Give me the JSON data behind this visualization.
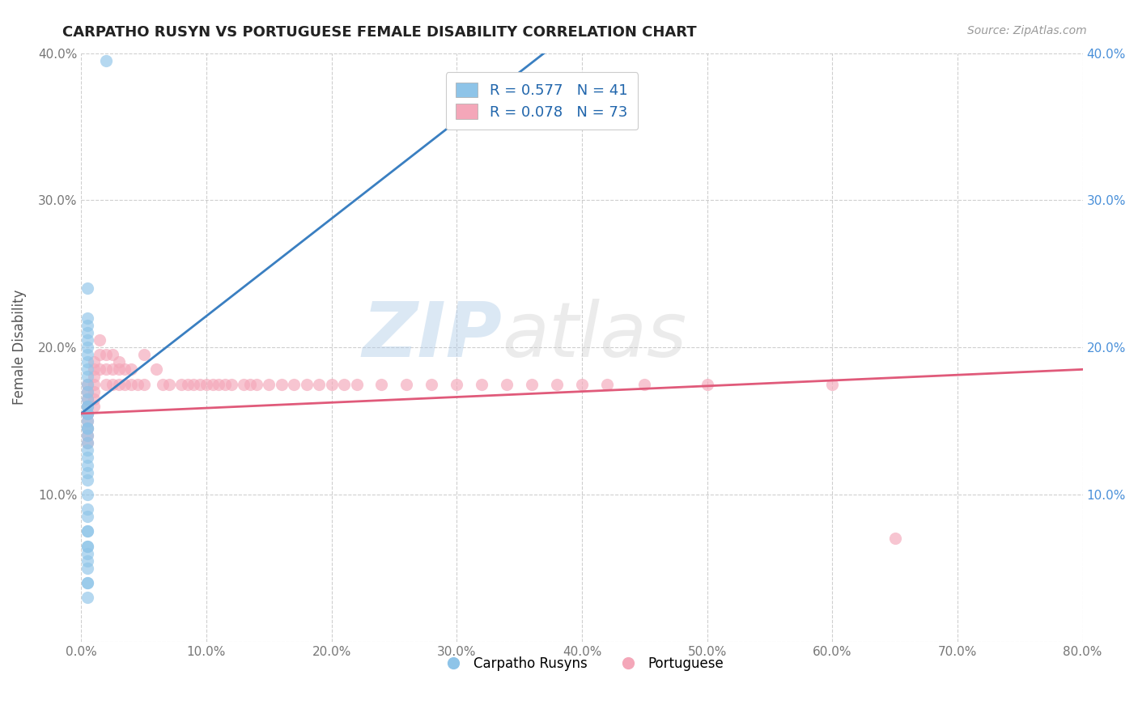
{
  "title": "CARPATHO RUSYN VS PORTUGUESE FEMALE DISABILITY CORRELATION CHART",
  "source_text": "Source: ZipAtlas.com",
  "xlabel": "",
  "ylabel": "Female Disability",
  "xlim": [
    0.0,
    0.8
  ],
  "ylim": [
    0.0,
    0.4
  ],
  "xticks": [
    0.0,
    0.1,
    0.2,
    0.3,
    0.4,
    0.5,
    0.6,
    0.7,
    0.8
  ],
  "yticks": [
    0.0,
    0.1,
    0.2,
    0.3,
    0.4
  ],
  "ytick_labels_left": [
    "",
    "10.0%",
    "20.0%",
    "30.0%",
    "40.0%"
  ],
  "ytick_labels_right": [
    "",
    "10.0%",
    "20.0%",
    "30.0%",
    "40.0%"
  ],
  "xtick_labels": [
    "0.0%",
    "10.0%",
    "20.0%",
    "30.0%",
    "40.0%",
    "50.0%",
    "60.0%",
    "70.0%",
    "80.0%"
  ],
  "legend_r1": "R = 0.577",
  "legend_n1": "N = 41",
  "legend_r2": "R = 0.078",
  "legend_n2": "N = 73",
  "color_blue": "#8ec4e8",
  "color_pink": "#f4a7b9",
  "line_color_blue": "#3a7fc1",
  "line_color_pink": "#e05a7a",
  "grid_color": "#bbbbbb",
  "background_color": "#ffffff",
  "watermark_zip": "ZIP",
  "watermark_atlas": "atlas",
  "blue_line_x": [
    0.0,
    0.8
  ],
  "blue_line_y": [
    0.155,
    0.685
  ],
  "pink_line_x": [
    0.0,
    0.8
  ],
  "pink_line_y": [
    0.155,
    0.185
  ],
  "carpatho_x": [
    0.02,
    0.005,
    0.005,
    0.005,
    0.005,
    0.005,
    0.005,
    0.005,
    0.005,
    0.005,
    0.005,
    0.005,
    0.005,
    0.005,
    0.005,
    0.005,
    0.005,
    0.005,
    0.005,
    0.005,
    0.005,
    0.005,
    0.005,
    0.005,
    0.005,
    0.005,
    0.005,
    0.005,
    0.005,
    0.005,
    0.005,
    0.005,
    0.005,
    0.005,
    0.005,
    0.005,
    0.005,
    0.005,
    0.005,
    0.005,
    0.005
  ],
  "carpatho_y": [
    0.395,
    0.24,
    0.22,
    0.215,
    0.21,
    0.205,
    0.2,
    0.195,
    0.19,
    0.185,
    0.18,
    0.175,
    0.17,
    0.165,
    0.16,
    0.16,
    0.155,
    0.155,
    0.15,
    0.145,
    0.145,
    0.14,
    0.135,
    0.13,
    0.125,
    0.12,
    0.115,
    0.11,
    0.1,
    0.09,
    0.085,
    0.075,
    0.065,
    0.055,
    0.04,
    0.03,
    0.075,
    0.065,
    0.06,
    0.05,
    0.04
  ],
  "portuguese_x": [
    0.005,
    0.005,
    0.005,
    0.005,
    0.005,
    0.005,
    0.005,
    0.005,
    0.005,
    0.005,
    0.01,
    0.01,
    0.01,
    0.01,
    0.01,
    0.01,
    0.01,
    0.015,
    0.015,
    0.015,
    0.02,
    0.02,
    0.02,
    0.025,
    0.025,
    0.025,
    0.03,
    0.03,
    0.03,
    0.035,
    0.035,
    0.04,
    0.04,
    0.045,
    0.05,
    0.05,
    0.06,
    0.065,
    0.07,
    0.08,
    0.085,
    0.09,
    0.095,
    0.1,
    0.105,
    0.11,
    0.115,
    0.12,
    0.13,
    0.135,
    0.14,
    0.15,
    0.16,
    0.17,
    0.18,
    0.19,
    0.2,
    0.21,
    0.22,
    0.24,
    0.26,
    0.28,
    0.3,
    0.32,
    0.34,
    0.36,
    0.38,
    0.4,
    0.42,
    0.45,
    0.5,
    0.6,
    0.65
  ],
  "portuguese_y": [
    0.175,
    0.17,
    0.165,
    0.16,
    0.155,
    0.155,
    0.15,
    0.145,
    0.14,
    0.135,
    0.19,
    0.185,
    0.18,
    0.175,
    0.17,
    0.165,
    0.16,
    0.205,
    0.195,
    0.185,
    0.195,
    0.185,
    0.175,
    0.195,
    0.185,
    0.175,
    0.19,
    0.185,
    0.175,
    0.185,
    0.175,
    0.185,
    0.175,
    0.175,
    0.195,
    0.175,
    0.185,
    0.175,
    0.175,
    0.175,
    0.175,
    0.175,
    0.175,
    0.175,
    0.175,
    0.175,
    0.175,
    0.175,
    0.175,
    0.175,
    0.175,
    0.175,
    0.175,
    0.175,
    0.175,
    0.175,
    0.175,
    0.175,
    0.175,
    0.175,
    0.175,
    0.175,
    0.175,
    0.175,
    0.175,
    0.175,
    0.175,
    0.175,
    0.175,
    0.175,
    0.175,
    0.175,
    0.07
  ]
}
